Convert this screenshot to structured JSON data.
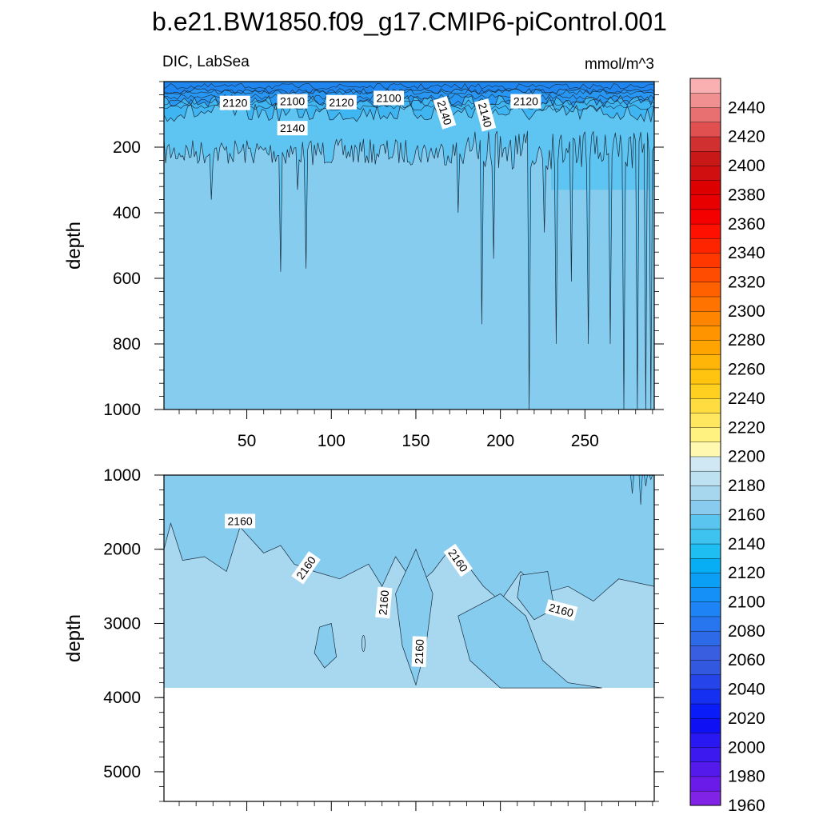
{
  "chart_data": {
    "type": "contour",
    "title": "b.e21.BW1850.f09_g17.CMIP6-piControl.001",
    "subtitle_left": "DIC, LabSea",
    "subtitle_right": "mmol/m^3",
    "x_ticks": [
      "50",
      "100",
      "150",
      "200",
      "250"
    ],
    "x_tick_values": [
      50,
      100,
      150,
      200,
      250
    ],
    "xlim": [
      1,
      291
    ],
    "panels": [
      {
        "ylabel": "depth",
        "ylim": [
          0,
          1000
        ],
        "y_ticks": [
          "200",
          "400",
          "600",
          "800",
          "1000"
        ],
        "y_tick_values": [
          200,
          400,
          600,
          800,
          1000
        ],
        "contour_labels": [
          {
            "text": "2120",
            "x": 43,
            "y": 65,
            "rot": 0
          },
          {
            "text": "2100",
            "x": 77,
            "y": 60,
            "rot": 0
          },
          {
            "text": "2120",
            "x": 106,
            "y": 63,
            "rot": 0
          },
          {
            "text": "2100",
            "x": 134,
            "y": 50,
            "rot": 0
          },
          {
            "text": "2140",
            "x": 77,
            "y": 142,
            "rot": 0
          },
          {
            "text": "2140",
            "x": 167,
            "y": 95,
            "rot": 72
          },
          {
            "text": "2140",
            "x": 191,
            "y": 102,
            "rot": 75
          },
          {
            "text": "2120",
            "x": 215,
            "y": 60,
            "rot": 0
          }
        ]
      },
      {
        "ylabel": "depth",
        "ylim": [
          1000,
          5400
        ],
        "y_ticks": [
          "1000",
          "2000",
          "3000",
          "4000",
          "5000"
        ],
        "y_tick_values": [
          1000,
          2000,
          3000,
          4000,
          5000
        ],
        "bottom_depth": 3870,
        "contour_labels": [
          {
            "text": "2160",
            "x": 46,
            "y": 1620,
            "rot": 0
          },
          {
            "text": "2160",
            "x": 85,
            "y": 2250,
            "rot": -55
          },
          {
            "text": "2160",
            "x": 131,
            "y": 2720,
            "rot": -85
          },
          {
            "text": "2160",
            "x": 152,
            "y": 3380,
            "rot": -88
          },
          {
            "text": "2160",
            "x": 175,
            "y": 2150,
            "rot": 55
          },
          {
            "text": "2160",
            "x": 236,
            "y": 2820,
            "rot": 15
          }
        ]
      }
    ],
    "colorbar": {
      "levels": [
        1960,
        1970,
        1980,
        1990,
        2000,
        2010,
        2020,
        2030,
        2040,
        2050,
        2060,
        2070,
        2080,
        2090,
        2100,
        2110,
        2120,
        2130,
        2140,
        2150,
        2160,
        2170,
        2180,
        2190,
        2200,
        2210,
        2220,
        2230,
        2240,
        2250,
        2260,
        2270,
        2280,
        2290,
        2300,
        2310,
        2320,
        2330,
        2340,
        2350,
        2360,
        2370,
        2380,
        2390,
        2400,
        2410,
        2420,
        2430,
        2440,
        2450
      ],
      "labels": [
        "1960",
        "1980",
        "2000",
        "2020",
        "2040",
        "2060",
        "2080",
        "2100",
        "2120",
        "2140",
        "2160",
        "2180",
        "2200",
        "2220",
        "2240",
        "2260",
        "2280",
        "2300",
        "2320",
        "2340",
        "2360",
        "2380",
        "2400",
        "2420",
        "2440"
      ],
      "label_values": [
        1960,
        1980,
        2000,
        2020,
        2040,
        2060,
        2080,
        2100,
        2120,
        2140,
        2160,
        2180,
        2200,
        2220,
        2240,
        2260,
        2280,
        2300,
        2320,
        2340,
        2360,
        2380,
        2400,
        2420,
        2440
      ],
      "colors": [
        "#8023e6",
        "#6a1ae9",
        "#541aec",
        "#3c1aef",
        "#2a18f2",
        "#1010f5",
        "#0a1cf7",
        "#1530f0",
        "#2545ea",
        "#3358e0",
        "#3a5ee0",
        "#2c6ae8",
        "#2776f0",
        "#1e83f5",
        "#1490f6",
        "#0c9ff6",
        "#08aef4",
        "#1ebdf2",
        "#3ec3f0",
        "#5ac6f0",
        "#88cbee",
        "#a7d7ee",
        "#bde1f1",
        "#cfe8f4",
        "#fff8b0",
        "#fff280",
        "#ffe860",
        "#ffdc40",
        "#ffd020",
        "#ffc410",
        "#ffb408",
        "#ffa400",
        "#ff9400",
        "#ff8400",
        "#ff7400",
        "#ff6000",
        "#ff4c00",
        "#ff3800",
        "#ff2400",
        "#ff1000",
        "#f50000",
        "#e80000",
        "#dc0000",
        "#d01010",
        "#c81818",
        "#d03030",
        "#e05050",
        "#e87070",
        "#f09090",
        "#fab0b0"
      ]
    }
  }
}
